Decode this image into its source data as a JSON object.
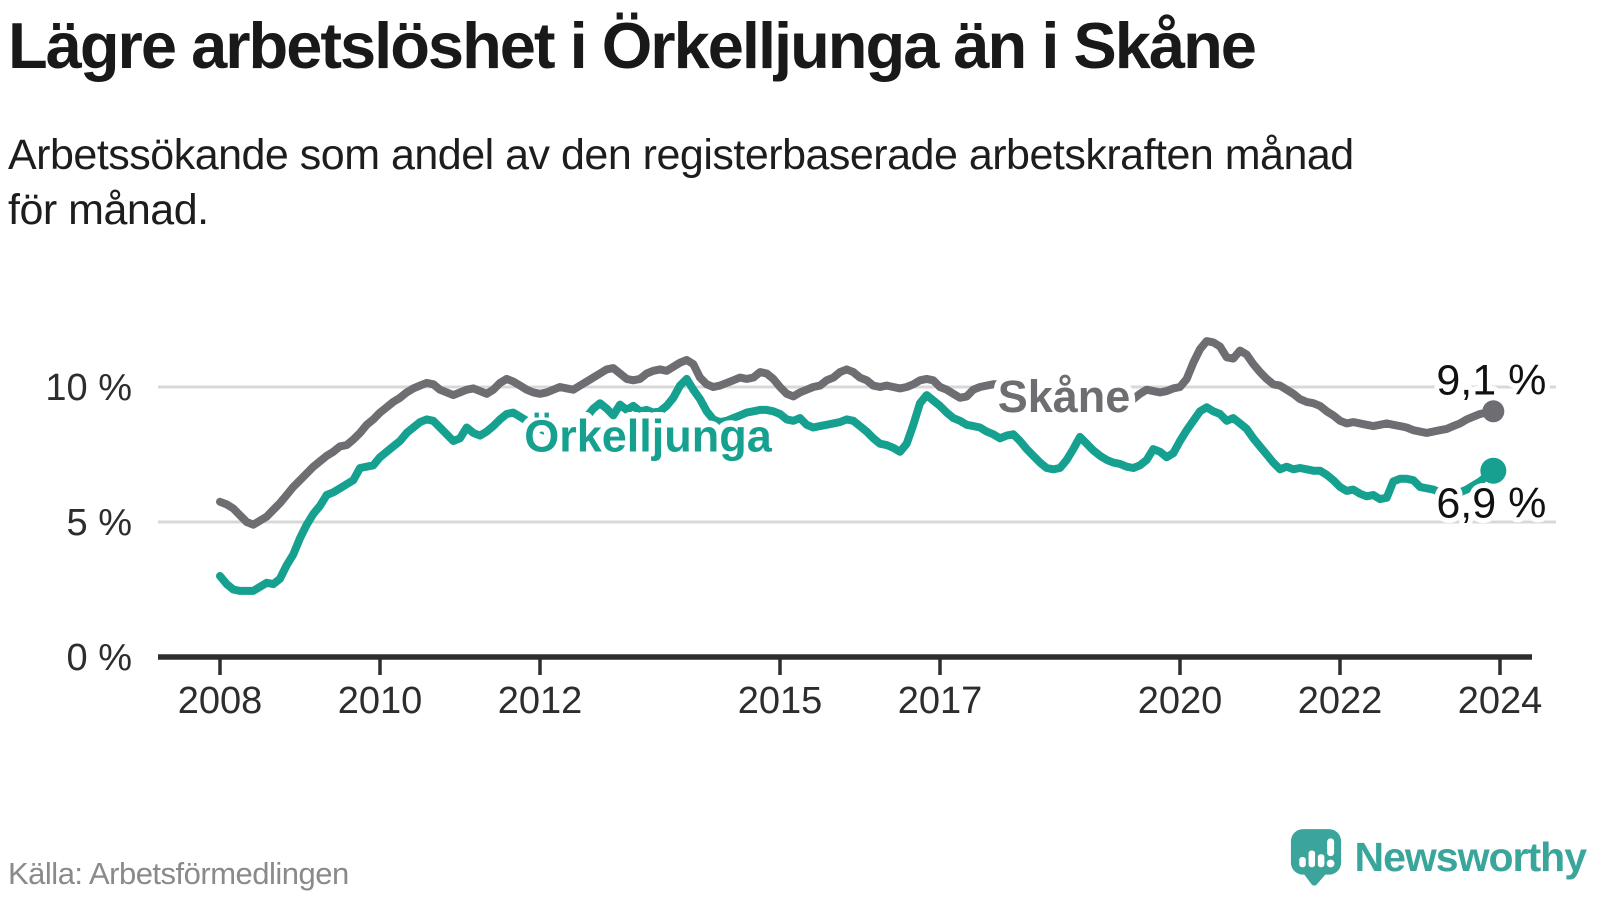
{
  "header": {
    "title": "Lägre arbetslöshet i Örkelljunga än i Skåne",
    "subtitle_line1": "Arbetssökande som andel av den registerbaserade arbetskraften månad",
    "subtitle_line2": "för månad."
  },
  "footer": {
    "source": "Källa: Arbetsförmedlingen",
    "brand": "Newsworthy"
  },
  "colors": {
    "skane_gray": "#6e6e72",
    "orkelljunga_teal": "#16a08f",
    "gridline": "#d8d8d8",
    "axis": "#2e2e2e",
    "tick_label": "#2d2d2d",
    "end_label": "#111111",
    "logo_teal": "#3ba59c"
  },
  "chart_data": {
    "type": "line",
    "title": "Lägre arbetslöshet i Örkelljunga än i Skåne",
    "unit": "%",
    "x_start": "2008-01",
    "frequency": "monthly",
    "grid": "horizontal",
    "legend_position": "on-line-labels",
    "x_ticks": [
      2008,
      2010,
      2012,
      2015,
      2017,
      2020,
      2022,
      2024
    ],
    "y_ticks": [
      {
        "value": 0,
        "label": "0 %"
      },
      {
        "value": 5,
        "label": "5 %"
      },
      {
        "value": 10,
        "label": "10 %"
      }
    ],
    "ylim": [
      0,
      12
    ],
    "series": [
      {
        "name": "Skåne",
        "id": "skane",
        "color": "#6e6e72",
        "end_label": "9,1 %",
        "end_value": 9.1,
        "end_label_position": "above",
        "dot_radius": 11,
        "label": {
          "text": "Skåne",
          "year": 2018.55,
          "value": 9.52
        },
        "values": [
          5.75,
          5.65,
          5.5,
          5.25,
          5.0,
          4.9,
          5.05,
          5.2,
          5.45,
          5.7,
          6.0,
          6.3,
          6.55,
          6.8,
          7.05,
          7.25,
          7.45,
          7.6,
          7.8,
          7.85,
          8.05,
          8.3,
          8.6,
          8.8,
          9.05,
          9.25,
          9.45,
          9.6,
          9.8,
          9.95,
          10.05,
          10.15,
          10.1,
          9.9,
          9.8,
          9.7,
          9.8,
          9.9,
          9.95,
          9.85,
          9.75,
          9.9,
          10.15,
          10.3,
          10.2,
          10.05,
          9.9,
          9.8,
          9.75,
          9.8,
          9.9,
          10.0,
          9.95,
          9.9,
          10.05,
          10.2,
          10.35,
          10.5,
          10.65,
          10.7,
          10.5,
          10.3,
          10.25,
          10.3,
          10.5,
          10.6,
          10.65,
          10.6,
          10.75,
          10.9,
          11.0,
          10.85,
          10.35,
          10.1,
          10.0,
          10.05,
          10.15,
          10.25,
          10.35,
          10.3,
          10.35,
          10.55,
          10.5,
          10.3,
          10.0,
          9.75,
          9.65,
          9.8,
          9.9,
          10.0,
          10.05,
          10.25,
          10.35,
          10.55,
          10.65,
          10.55,
          10.35,
          10.25,
          10.05,
          10.0,
          10.05,
          10.0,
          9.95,
          10.0,
          10.1,
          10.25,
          10.3,
          10.25,
          10.0,
          9.9,
          9.75,
          9.6,
          9.65,
          9.9,
          10.0,
          10.05,
          10.1,
          10.1,
          10.05,
          10.0,
          9.95,
          9.9,
          9.85,
          9.8,
          9.75,
          9.7,
          9.7,
          9.65,
          9.6,
          9.55,
          9.5,
          9.45,
          9.45,
          9.4,
          9.38,
          9.36,
          9.4,
          9.55,
          9.75,
          9.9,
          9.85,
          9.8,
          9.85,
          9.95,
          10.0,
          10.3,
          10.9,
          11.4,
          11.7,
          11.65,
          11.5,
          11.1,
          11.05,
          11.35,
          11.2,
          10.85,
          10.55,
          10.3,
          10.1,
          10.05,
          9.9,
          9.75,
          9.55,
          9.45,
          9.4,
          9.3,
          9.1,
          8.95,
          8.75,
          8.65,
          8.7,
          8.65,
          8.6,
          8.55,
          8.6,
          8.65,
          8.6,
          8.55,
          8.5,
          8.4,
          8.35,
          8.3,
          8.35,
          8.4,
          8.45,
          8.55,
          8.65,
          8.8,
          8.9,
          9.0,
          9.05,
          9.1
        ]
      },
      {
        "name": "Örkelljunga",
        "id": "orkelljunga",
        "color": "#16a08f",
        "end_label": "6,9 %",
        "end_value": 6.9,
        "end_label_position": "below",
        "dot_radius": 13,
        "label": {
          "text": "Örkelljunga",
          "year": 2013.35,
          "value": 8.05
        },
        "values": [
          3.0,
          2.7,
          2.5,
          2.45,
          2.45,
          2.45,
          2.6,
          2.75,
          2.7,
          2.9,
          3.4,
          3.8,
          4.4,
          4.9,
          5.3,
          5.6,
          6.0,
          6.1,
          6.25,
          6.4,
          6.55,
          7.0,
          7.05,
          7.1,
          7.4,
          7.6,
          7.8,
          8.0,
          8.3,
          8.5,
          8.7,
          8.8,
          8.75,
          8.5,
          8.25,
          8.0,
          8.1,
          8.5,
          8.3,
          8.2,
          8.35,
          8.55,
          8.8,
          9.0,
          9.05,
          8.9,
          8.75,
          8.6,
          8.45,
          8.35,
          8.45,
          8.5,
          8.45,
          8.5,
          8.7,
          8.9,
          9.2,
          9.4,
          9.2,
          8.95,
          9.35,
          9.15,
          9.3,
          9.1,
          9.15,
          9.05,
          9.1,
          9.3,
          9.6,
          10.05,
          10.3,
          9.9,
          9.55,
          9.1,
          8.8,
          8.7,
          8.75,
          8.85,
          8.95,
          9.05,
          9.1,
          9.15,
          9.15,
          9.1,
          9.0,
          8.8,
          8.75,
          8.85,
          8.6,
          8.5,
          8.55,
          8.6,
          8.65,
          8.7,
          8.8,
          8.75,
          8.55,
          8.35,
          8.1,
          7.9,
          7.85,
          7.75,
          7.6,
          7.9,
          8.6,
          9.4,
          9.7,
          9.5,
          9.3,
          9.05,
          8.85,
          8.75,
          8.6,
          8.55,
          8.5,
          8.35,
          8.25,
          8.1,
          8.2,
          8.25,
          8.0,
          7.7,
          7.45,
          7.2,
          7.0,
          6.95,
          7.0,
          7.3,
          7.7,
          8.15,
          7.9,
          7.65,
          7.45,
          7.3,
          7.2,
          7.15,
          7.05,
          7.0,
          7.1,
          7.3,
          7.7,
          7.6,
          7.4,
          7.55,
          8.0,
          8.4,
          8.75,
          9.1,
          9.25,
          9.1,
          9.0,
          8.75,
          8.85,
          8.65,
          8.45,
          8.1,
          7.8,
          7.5,
          7.2,
          6.95,
          7.05,
          6.95,
          7.0,
          6.95,
          6.9,
          6.9,
          6.75,
          6.55,
          6.3,
          6.15,
          6.2,
          6.05,
          5.95,
          6.0,
          5.85,
          5.9,
          6.5,
          6.6,
          6.6,
          6.55,
          6.3,
          6.25,
          6.2,
          6.1,
          6.05,
          6.0,
          6.1,
          6.2,
          6.35,
          6.5,
          6.7,
          6.9
        ]
      }
    ]
  }
}
